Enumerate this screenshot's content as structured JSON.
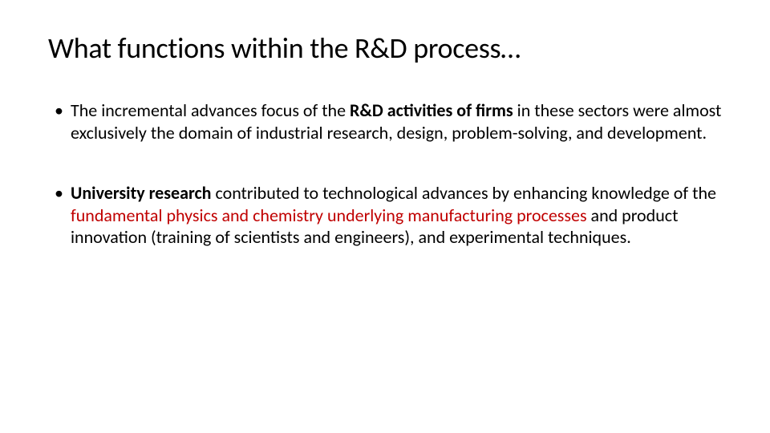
{
  "slide": {
    "title": "What functions within the R&D process…",
    "bullets": [
      {
        "segments": [
          {
            "text": "The incremental advances focus of the ",
            "bold": false,
            "red": false
          },
          {
            "text": "R&D activities of firms ",
            "bold": true,
            "red": false
          },
          {
            "text": "in these sectors were almost exclusively the domain of industrial research, design, problem-solving, and development.",
            "bold": false,
            "red": false
          }
        ]
      },
      {
        "segments": [
          {
            "text": "University research ",
            "bold": true,
            "red": false
          },
          {
            "text": "contributed to technological advances by enhancing knowledge of the ",
            "bold": false,
            "red": false
          },
          {
            "text": "fundamental physics and chemistry underlying manufacturing processes ",
            "bold": false,
            "red": true
          },
          {
            "text": "and product innovation (training of scientists and engineers), and experimental techniques.",
            "bold": false,
            "red": false
          }
        ]
      }
    ]
  },
  "styles": {
    "background_color": "#ffffff",
    "text_color": "#000000",
    "red_color": "#c00000",
    "title_fontsize": 36,
    "body_fontsize": 22,
    "font_family": "Calibri"
  }
}
